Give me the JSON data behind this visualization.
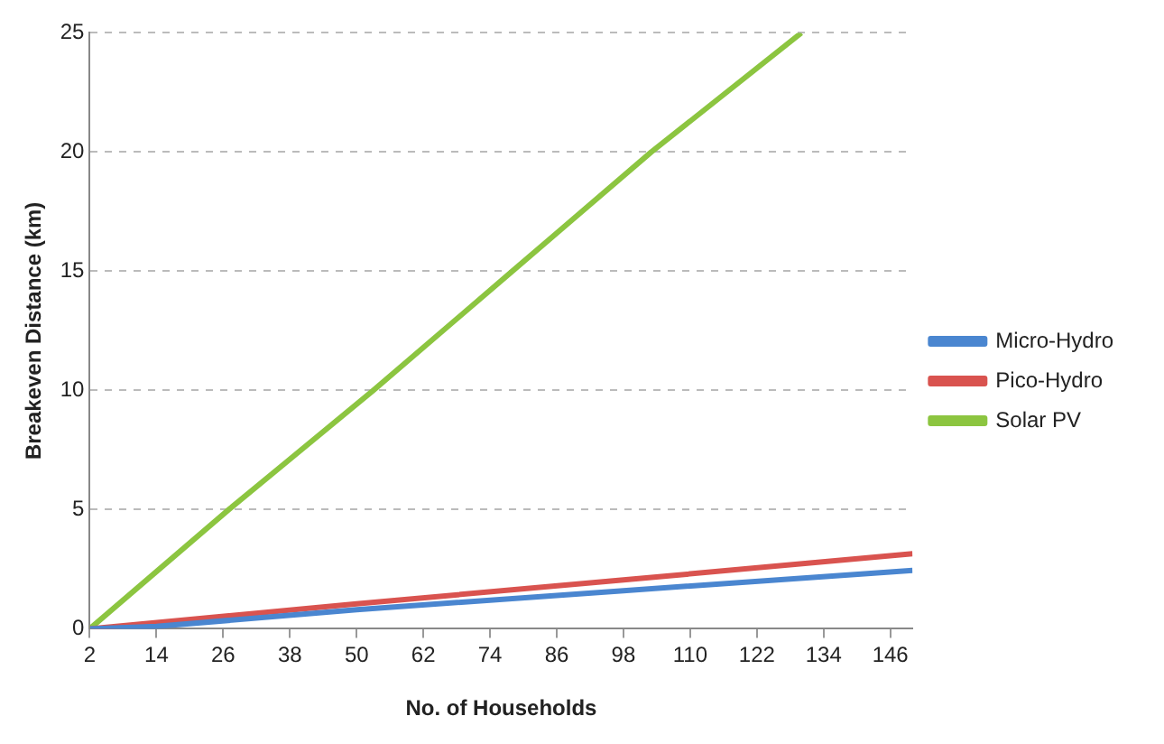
{
  "chart_data": {
    "type": "line",
    "xlabel": "No. of Households",
    "ylabel": "Breakeven Distance (km)",
    "xlim": [
      2,
      150
    ],
    "xticks": [
      2,
      14,
      26,
      38,
      50,
      62,
      74,
      86,
      98,
      110,
      122,
      134,
      146
    ],
    "ylim": [
      0,
      25
    ],
    "yticks": [
      0,
      5,
      10,
      15,
      20,
      25
    ],
    "grid": "y",
    "legend": "right",
    "marker": "none",
    "line_style": "solid",
    "series": [
      {
        "name": "Micro-Hydro",
        "color": "#4a86d0",
        "x": [
          2,
          14,
          50,
          98,
          150
        ],
        "values": [
          0,
          0.1,
          0.8,
          1.6,
          2.45
        ]
      },
      {
        "name": "Pico-Hydro",
        "color": "#d9534f",
        "x": [
          2,
          50,
          98,
          150
        ],
        "values": [
          0,
          1.05,
          2.05,
          3.15
        ]
      },
      {
        "name": "Solar PV",
        "color": "#8cc540",
        "x": [
          2,
          27,
          53,
          78,
          103,
          130
        ],
        "values": [
          0,
          5,
          10,
          15,
          20,
          25
        ]
      }
    ]
  }
}
